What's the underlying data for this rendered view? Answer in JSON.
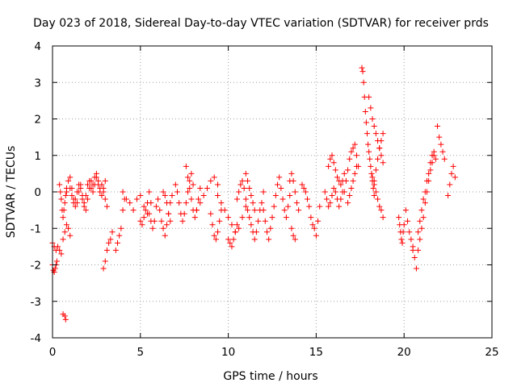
{
  "chart_data": {
    "type": "scatter",
    "title": "Day 023 of 2018, Sidereal Day-to-day VTEC variation (SDTVAR) for receiver prds",
    "xlabel": "GPS time / hours",
    "ylabel": "SDTVAR / TECUs",
    "xlim": [
      0,
      25
    ],
    "ylim": [
      -4,
      4
    ],
    "xticks": [
      "0",
      "5",
      "10",
      "15",
      "20",
      "25"
    ],
    "yticks": [
      "-4",
      "-3",
      "-2",
      "-1",
      "0",
      "1",
      "2",
      "3",
      "4"
    ],
    "grid": true,
    "marker": "+",
    "color": "#ff0000",
    "segments": [
      {
        "x": [
          0.0,
          0.1,
          0.2,
          0.3,
          0.4,
          0.5
        ],
        "y": [
          -1.4,
          -1.5,
          -1.6,
          -1.5,
          -1.6,
          -1.7
        ]
      },
      {
        "x": [
          0.0,
          0.05,
          0.1,
          0.15,
          0.2,
          0.25
        ],
        "y": [
          -2.0,
          -2.15,
          -2.2,
          -2.1,
          -2.0,
          -1.9
        ]
      },
      {
        "x": [
          0.6,
          0.7,
          0.75
        ],
        "y": [
          -3.35,
          -3.4,
          -3.5
        ]
      },
      {
        "x": [
          0.4,
          0.45,
          0.5,
          0.55,
          0.6,
          0.65,
          0.7,
          0.75,
          0.8
        ],
        "y": [
          0.2,
          0.0,
          -0.2,
          -0.5,
          -0.7,
          -0.5,
          -0.3,
          -0.1,
          0.1
        ]
      },
      {
        "x": [
          0.6,
          0.7,
          0.8,
          0.9,
          1.0
        ],
        "y": [
          -1.3,
          -1.1,
          -0.9,
          -1.0,
          -1.2
        ]
      },
      {
        "x": [
          0.8,
          0.9,
          1.0,
          1.1,
          1.2,
          1.3,
          1.4,
          1.5,
          1.6,
          1.7,
          1.8,
          1.9,
          2.0,
          2.1,
          2.2,
          2.3,
          2.4,
          2.5,
          2.6,
          2.7,
          2.8,
          2.9,
          3.0,
          3.1
        ],
        "y": [
          0.0,
          0.3,
          0.4,
          0.1,
          -0.2,
          -0.4,
          -0.3,
          0.0,
          0.2,
          -0.1,
          -0.3,
          -0.5,
          -0.2,
          0.1,
          0.3,
          0.2,
          0.4,
          0.5,
          0.3,
          0.1,
          0.2,
          0.0,
          -0.2,
          -0.4
        ]
      },
      {
        "x": [
          1.0,
          1.1,
          1.2,
          1.3,
          1.4,
          1.5,
          1.6,
          1.7,
          1.8,
          1.9,
          2.0,
          2.1,
          2.2,
          2.3,
          2.4,
          2.5,
          2.6,
          2.7,
          2.8,
          2.9,
          3.0
        ],
        "y": [
          0.1,
          -0.1,
          -0.3,
          -0.2,
          0.0,
          0.2,
          0.1,
          -0.2,
          -0.4,
          -0.1,
          0.2,
          0.3,
          0.1,
          0.0,
          0.2,
          0.4,
          0.2,
          0.0,
          -0.1,
          0.1,
          0.3
        ]
      },
      {
        "x": [
          2.9,
          3.0,
          3.1,
          3.2,
          3.3,
          3.4
        ],
        "y": [
          -2.1,
          -1.9,
          -1.6,
          -1.4,
          -1.3,
          -1.1
        ]
      },
      {
        "x": [
          3.6,
          3.7,
          3.8,
          3.9,
          4.0,
          4.1
        ],
        "y": [
          -1.6,
          -1.4,
          -1.2,
          -1.0,
          -0.5,
          -0.2
        ]
      },
      {
        "x": [
          4.0,
          4.2,
          4.4,
          4.6,
          4.8,
          5.0,
          5.2,
          5.4,
          5.6
        ],
        "y": [
          0.0,
          -0.2,
          -0.3,
          -0.5,
          -0.2,
          -0.1,
          -0.4,
          -0.6,
          -0.3
        ]
      },
      {
        "x": [
          5.0,
          5.1,
          5.2,
          5.3,
          5.4,
          5.5
        ],
        "y": [
          -0.8,
          -0.9,
          -0.7,
          -0.5,
          -0.3,
          0.0
        ]
      },
      {
        "x": [
          5.5,
          5.6,
          5.7,
          5.8,
          5.9
        ],
        "y": [
          -0.6,
          -0.8,
          -1.0,
          -0.8,
          -0.4
        ]
      },
      {
        "x": [
          6.0,
          6.1,
          6.2,
          6.3,
          6.4,
          6.5,
          6.6,
          6.7,
          6.8
        ],
        "y": [
          -0.2,
          -0.5,
          -0.8,
          -1.0,
          -1.2,
          -0.9,
          -0.6,
          -0.3,
          -0.1
        ]
      },
      {
        "x": [
          6.3,
          6.4,
          6.5,
          6.6,
          6.7
        ],
        "y": [
          0.0,
          -0.1,
          -0.3,
          -0.6,
          -0.8
        ]
      },
      {
        "x": [
          7.0,
          7.1,
          7.2,
          7.3,
          7.4,
          7.5,
          7.6,
          7.7,
          7.8,
          7.9,
          8.0
        ],
        "y": [
          0.2,
          0.0,
          -0.3,
          -0.6,
          -0.8,
          -0.6,
          -0.3,
          0.0,
          0.3,
          0.5,
          0.2
        ]
      },
      {
        "x": [
          7.6,
          7.7,
          7.8,
          7.9,
          8.0,
          8.1,
          8.2,
          8.3,
          8.4
        ],
        "y": [
          0.7,
          0.4,
          0.1,
          -0.2,
          -0.5,
          -0.7,
          -0.5,
          -0.2,
          0.1
        ]
      },
      {
        "x": [
          8.2,
          8.4,
          8.6,
          8.8,
          9.0,
          9.2,
          9.4
        ],
        "y": [
          -0.5,
          -0.3,
          -0.1,
          0.1,
          0.3,
          0.4,
          0.2
        ]
      },
      {
        "x": [
          9.0,
          9.1,
          9.2,
          9.3,
          9.4,
          9.5,
          9.6
        ],
        "y": [
          -0.6,
          -0.9,
          -1.2,
          -1.3,
          -1.1,
          -0.8,
          -0.5
        ]
      },
      {
        "x": [
          9.4,
          9.6,
          9.8,
          10.0,
          10.2,
          10.4,
          10.6,
          10.8,
          11.0
        ],
        "y": [
          -0.1,
          -0.3,
          -0.5,
          -0.7,
          -0.9,
          -1.1,
          -1.0,
          -0.7,
          -0.4
        ]
      },
      {
        "x": [
          10.0,
          10.1,
          10.2,
          10.3,
          10.4,
          10.5
        ],
        "y": [
          -1.3,
          -1.4,
          -1.5,
          -1.3,
          -1.1,
          -0.9
        ]
      },
      {
        "x": [
          10.5,
          10.6,
          10.7,
          10.8,
          10.9,
          11.0,
          11.1,
          11.2,
          11.3,
          11.4,
          11.5,
          11.6,
          11.7,
          11.8,
          11.9,
          12.0
        ],
        "y": [
          -0.2,
          0.0,
          0.2,
          0.3,
          0.1,
          -0.2,
          -0.5,
          -0.7,
          -0.9,
          -1.1,
          -1.3,
          -1.1,
          -0.8,
          -0.5,
          -0.3,
          0.0
        ]
      },
      {
        "x": [
          11.0,
          11.1,
          11.2,
          11.3,
          11.4,
          11.5
        ],
        "y": [
          0.5,
          0.3,
          0.1,
          -0.1,
          -0.3,
          -0.5
        ]
      },
      {
        "x": [
          12.0,
          12.1,
          12.2,
          12.3,
          12.4,
          12.5,
          12.6,
          12.7,
          12.8,
          12.9,
          13.0,
          13.1,
          13.2,
          13.3,
          13.4,
          13.5
        ],
        "y": [
          -0.5,
          -0.8,
          -1.1,
          -1.3,
          -1.0,
          -0.7,
          -0.4,
          -0.1,
          0.2,
          0.4,
          0.1,
          -0.2,
          -0.5,
          -0.7,
          -0.4,
          -0.1
        ]
      },
      {
        "x": [
          13.5,
          13.6,
          13.7,
          13.8,
          13.9,
          14.0
        ],
        "y": [
          0.3,
          0.5,
          0.3,
          0.0,
          -0.3,
          -0.5
        ]
      },
      {
        "x": [
          13.6,
          13.7,
          13.8
        ],
        "y": [
          -1.0,
          -1.2,
          -1.3
        ]
      },
      {
        "x": [
          14.2,
          14.3,
          14.4,
          14.5,
          14.6,
          14.7,
          14.8,
          14.9,
          15.0,
          15.1,
          15.2
        ],
        "y": [
          0.2,
          0.1,
          0.0,
          -0.2,
          -0.4,
          -0.7,
          -0.9,
          -1.0,
          -1.2,
          -0.8,
          -0.4
        ]
      },
      {
        "x": [
          15.5,
          15.6,
          15.7,
          15.8,
          15.9,
          16.0,
          16.1,
          16.2,
          16.3,
          16.4,
          16.5
        ],
        "y": [
          0.0,
          -0.2,
          -0.4,
          -0.3,
          -0.1,
          0.1,
          0.0,
          -0.2,
          -0.4,
          -0.2,
          0.0
        ]
      },
      {
        "x": [
          15.7,
          15.8,
          15.9,
          16.0,
          16.1,
          16.2,
          16.3,
          16.4,
          16.5,
          16.6
        ],
        "y": [
          0.7,
          0.9,
          1.0,
          0.8,
          0.6,
          0.4,
          0.3,
          0.2,
          0.3,
          0.5
        ]
      },
      {
        "x": [
          16.6,
          16.7,
          16.8,
          16.9,
          17.0,
          17.1,
          17.2,
          17.3,
          17.4
        ],
        "y": [
          0.0,
          0.3,
          0.6,
          0.9,
          1.1,
          1.2,
          1.3,
          1.0,
          0.7
        ]
      },
      {
        "x": [
          16.8,
          16.9,
          17.0,
          17.1,
          17.2,
          17.3
        ],
        "y": [
          -0.3,
          -0.1,
          0.1,
          0.3,
          0.5,
          0.7
        ]
      },
      {
        "x": [
          17.6,
          17.65,
          17.7,
          17.75,
          17.8,
          17.85,
          17.9,
          17.95,
          18.0,
          18.05,
          18.1,
          18.15,
          18.2,
          18.25,
          18.3
        ],
        "y": [
          3.4,
          3.3,
          3.0,
          2.6,
          2.2,
          1.9,
          1.6,
          1.3,
          1.1,
          0.9,
          0.7,
          0.5,
          0.3,
          0.1,
          -0.1
        ]
      },
      {
        "x": [
          18.0,
          18.1,
          18.2,
          18.3,
          18.4,
          18.5,
          18.6,
          18.7,
          18.8
        ],
        "y": [
          2.6,
          2.3,
          2.0,
          1.8,
          1.6,
          1.4,
          1.2,
          1.0,
          0.8
        ]
      },
      {
        "x": [
          18.2,
          18.3,
          18.4,
          18.5,
          18.6,
          18.7,
          18.8
        ],
        "y": [
          0.4,
          0.2,
          0.0,
          -0.2,
          -0.4,
          -0.5,
          -0.7
        ]
      },
      {
        "x": [
          18.3,
          18.4,
          18.5,
          18.6,
          18.7,
          18.8
        ],
        "y": [
          0.3,
          0.6,
          0.9,
          1.2,
          1.4,
          1.6
        ]
      },
      {
        "x": [
          19.7,
          19.75,
          19.8,
          19.85,
          19.9,
          19.95,
          20.0
        ],
        "y": [
          -0.7,
          -0.9,
          -1.1,
          -1.3,
          -1.4,
          -1.1,
          -0.9
        ]
      },
      {
        "x": [
          20.1,
          20.2,
          20.3,
          20.4,
          20.5
        ],
        "y": [
          -0.5,
          -0.8,
          -1.1,
          -1.3,
          -1.5
        ]
      },
      {
        "x": [
          20.5,
          20.6,
          20.7,
          20.8,
          20.9,
          21.0,
          21.1
        ],
        "y": [
          -1.6,
          -1.8,
          -2.1,
          -1.6,
          -1.3,
          -1.0,
          -0.7
        ]
      },
      {
        "x": [
          20.8,
          20.9,
          21.0,
          21.1,
          21.2,
          21.3,
          21.4,
          21.5,
          21.6,
          21.7,
          21.8
        ],
        "y": [
          -1.1,
          -0.8,
          -0.5,
          -0.2,
          0.0,
          0.3,
          0.5,
          0.8,
          1.0,
          1.1,
          0.9
        ]
      },
      {
        "x": [
          21.2,
          21.3,
          21.4,
          21.5,
          21.6,
          21.7
        ],
        "y": [
          -0.3,
          0.0,
          0.3,
          0.6,
          0.8,
          1.0
        ]
      },
      {
        "x": [
          21.9,
          22.0,
          22.1,
          22.2,
          22.3
        ],
        "y": [
          1.8,
          1.5,
          1.3,
          1.1,
          0.9
        ]
      },
      {
        "x": [
          22.5,
          22.6,
          22.7,
          22.8,
          22.9
        ],
        "y": [
          -0.1,
          0.2,
          0.5,
          0.7,
          0.4
        ]
      }
    ]
  }
}
